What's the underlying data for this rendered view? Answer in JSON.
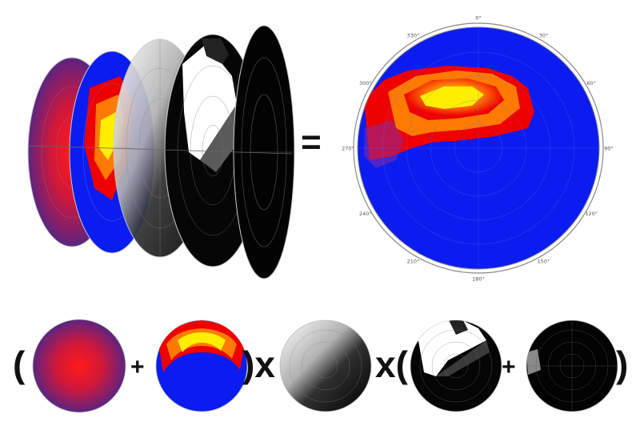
{
  "operators": {
    "equals": "=",
    "open_paren_1": "(",
    "plus_1": "+",
    "close_paren_times": ")x",
    "times_open_paren": "x(",
    "plus_2": "+",
    "close_paren_2": ")"
  },
  "result_disc": {
    "angle_labels": [
      "0°",
      "30°",
      "60°",
      "90°",
      "120°",
      "150°",
      "180°",
      "210°",
      "240°",
      "270°",
      "300°",
      "330°"
    ]
  },
  "layers": [
    {
      "name": "purple-red-gradient",
      "colors": [
        "#ff1a1a",
        "#a01c5a",
        "#3a2a8a"
      ]
    },
    {
      "name": "sky-heatmap",
      "colors": [
        "#ffee00",
        "#ff7a00",
        "#ee0000",
        "#0b1cf0"
      ]
    },
    {
      "name": "sun-position-shade",
      "colors": [
        "#ffffff",
        "#000000"
      ]
    },
    {
      "name": "horizon-obstruction",
      "colors": [
        "#ffffff",
        "#000000"
      ]
    },
    {
      "name": "dark-mask",
      "colors": [
        "#000000",
        "#9a9a9a"
      ]
    }
  ]
}
